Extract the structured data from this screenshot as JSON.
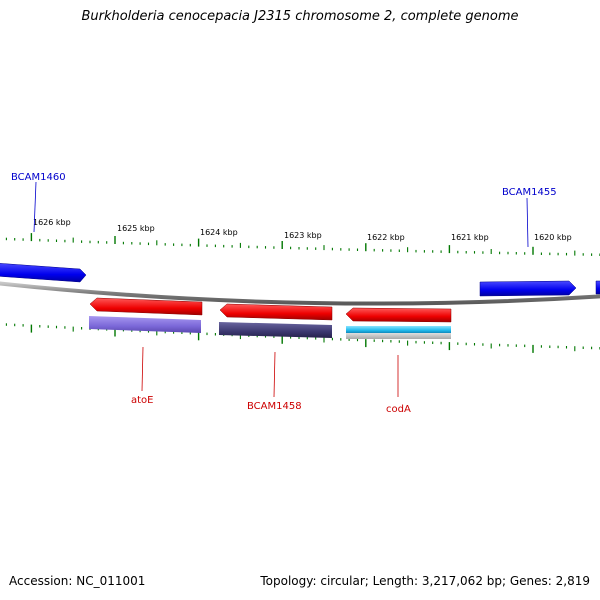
{
  "title": "Burkholderia cenocepacia J2315 chromosome 2, complete genome",
  "footer": {
    "accession": "Accession: NC_011001",
    "summary": "Topology: circular; Length: 3,217,062 bp; Genes: 2,819"
  },
  "scale_labels": [
    "1626 kbp",
    "1625 kbp",
    "1624 kbp",
    "1623 kbp",
    "1622 kbp",
    "1621 kbp",
    "1620 kbp"
  ],
  "gene_labels": {
    "bcam1460": "BCAM1460",
    "bcam1455": "BCAM1455",
    "atoe": "atoE",
    "bcam1458": "BCAM1458",
    "coda": "codA"
  },
  "colors": {
    "forward_gene": "#0000ee",
    "reverse_gene": "#ee0000",
    "backbone": "#888888",
    "ticks": "#007700",
    "cog_purple": "#7b68d8",
    "cog_navy": "#3c3870",
    "cog_cyan": "#22bbee"
  }
}
